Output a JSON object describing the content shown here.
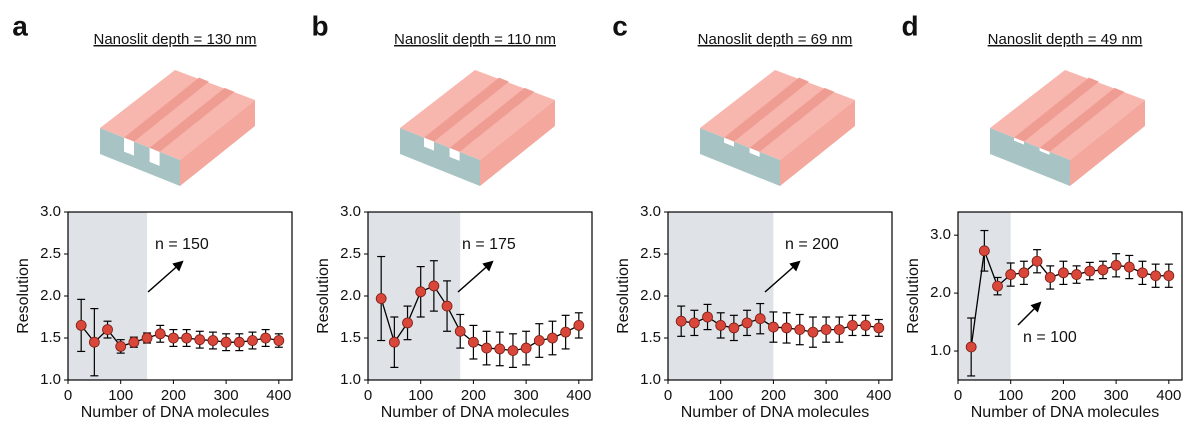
{
  "chart_data": [
    {
      "type": "line",
      "label": "a",
      "title": "Nanoslit depth = 130 nm",
      "xlabel": "Number of DNA molecules",
      "ylabel": "Resolution",
      "annotation": "n = 150",
      "shade_x": 150,
      "x": [
        25,
        50,
        75,
        100,
        125,
        150,
        175,
        200,
        225,
        250,
        275,
        300,
        325,
        350,
        375,
        400
      ],
      "series": [
        {
          "color": "#d9463a",
          "values": [
            1.65,
            1.45,
            1.6,
            1.4,
            1.45,
            1.5,
            1.55,
            1.5,
            1.5,
            1.48,
            1.47,
            1.45,
            1.45,
            1.47,
            1.5,
            1.47
          ],
          "errors": [
            0.31,
            0.4,
            0.1,
            0.08,
            0.06,
            0.06,
            0.1,
            0.1,
            0.1,
            0.1,
            0.1,
            0.1,
            0.1,
            0.1,
            0.1,
            0.08
          ]
        }
      ],
      "xlim": [
        0,
        425
      ],
      "xticks": [
        0,
        100,
        200,
        300,
        400
      ],
      "ylim": [
        1,
        3
      ],
      "yticks": [
        {
          "value": 1,
          "label": "1.0"
        },
        1.5,
        {
          "value": 2,
          "label": "2.0"
        },
        2.5,
        {
          "value": 3,
          "label": "3.0"
        }
      ]
    },
    {
      "type": "line",
      "label": "b",
      "title": "Nanoslit depth = 110 nm",
      "xlabel": "Number of DNA molecules",
      "ylabel": "Resolution",
      "annotation": "n = 175",
      "shade_x": 175,
      "x": [
        25,
        50,
        75,
        100,
        125,
        150,
        175,
        200,
        225,
        250,
        275,
        300,
        325,
        350,
        375,
        400
      ],
      "series": [
        {
          "color": "#d9463a",
          "values": [
            1.97,
            1.45,
            1.68,
            2.05,
            2.12,
            1.88,
            1.58,
            1.45,
            1.38,
            1.37,
            1.35,
            1.38,
            1.47,
            1.5,
            1.57,
            1.65
          ],
          "errors": [
            0.5,
            0.3,
            0.2,
            0.3,
            0.3,
            0.3,
            0.2,
            0.2,
            0.2,
            0.2,
            0.2,
            0.2,
            0.2,
            0.2,
            0.2,
            0.15
          ]
        }
      ],
      "xlim": [
        0,
        425
      ],
      "xticks": [
        0,
        100,
        200,
        300,
        400
      ],
      "ylim": [
        1,
        3
      ],
      "yticks": [
        {
          "value": 1,
          "label": "1.0"
        },
        1.5,
        {
          "value": 2,
          "label": "2.0"
        },
        2.5,
        {
          "value": 3,
          "label": "3.0"
        }
      ]
    },
    {
      "type": "line",
      "label": "c",
      "title": "Nanoslit depth = 69 nm",
      "xlabel": "Number of DNA molecules",
      "ylabel": "Resolution",
      "annotation": "n = 200",
      "shade_x": 200,
      "x": [
        25,
        50,
        75,
        100,
        125,
        150,
        175,
        200,
        225,
        250,
        275,
        300,
        325,
        350,
        375,
        400
      ],
      "series": [
        {
          "color": "#d9463a",
          "values": [
            1.7,
            1.68,
            1.75,
            1.65,
            1.62,
            1.68,
            1.73,
            1.63,
            1.62,
            1.6,
            1.57,
            1.6,
            1.6,
            1.65,
            1.65,
            1.62
          ],
          "errors": [
            0.18,
            0.15,
            0.15,
            0.15,
            0.15,
            0.15,
            0.18,
            0.18,
            0.18,
            0.18,
            0.18,
            0.15,
            0.15,
            0.12,
            0.12,
            0.1
          ]
        }
      ],
      "xlim": [
        0,
        425
      ],
      "xticks": [
        0,
        100,
        200,
        300,
        400
      ],
      "ylim": [
        1,
        3
      ],
      "yticks": [
        {
          "value": 1,
          "label": "1.0"
        },
        1.5,
        {
          "value": 2,
          "label": "2.0"
        },
        2.5,
        {
          "value": 3,
          "label": "3.0"
        }
      ]
    },
    {
      "type": "line",
      "label": "d",
      "title": "Nanoslit depth = 49 nm",
      "xlabel": "Number of DNA molecules",
      "ylabel": "Resolution",
      "annotation": "n = 100",
      "shade_x": 100,
      "x": [
        25,
        50,
        75,
        100,
        125,
        150,
        175,
        200,
        225,
        250,
        275,
        300,
        325,
        350,
        375,
        400
      ],
      "series": [
        {
          "color": "#d9463a",
          "values": [
            1.07,
            2.73,
            2.12,
            2.32,
            2.35,
            2.55,
            2.27,
            2.35,
            2.32,
            2.38,
            2.4,
            2.48,
            2.45,
            2.35,
            2.3,
            2.3
          ],
          "errors": [
            0.5,
            0.35,
            0.15,
            0.2,
            0.2,
            0.2,
            0.2,
            0.2,
            0.15,
            0.15,
            0.15,
            0.2,
            0.2,
            0.2,
            0.2,
            0.2
          ]
        }
      ],
      "xlim": [
        0,
        425
      ],
      "xticks": [
        0,
        100,
        200,
        300,
        400
      ],
      "ylim": [
        0.5,
        3.4
      ],
      "yticks": [
        {
          "value": 1,
          "label": "1.0"
        },
        {
          "value": 2,
          "label": "2.0"
        },
        {
          "value": 3,
          "label": "3.0"
        }
      ]
    }
  ]
}
